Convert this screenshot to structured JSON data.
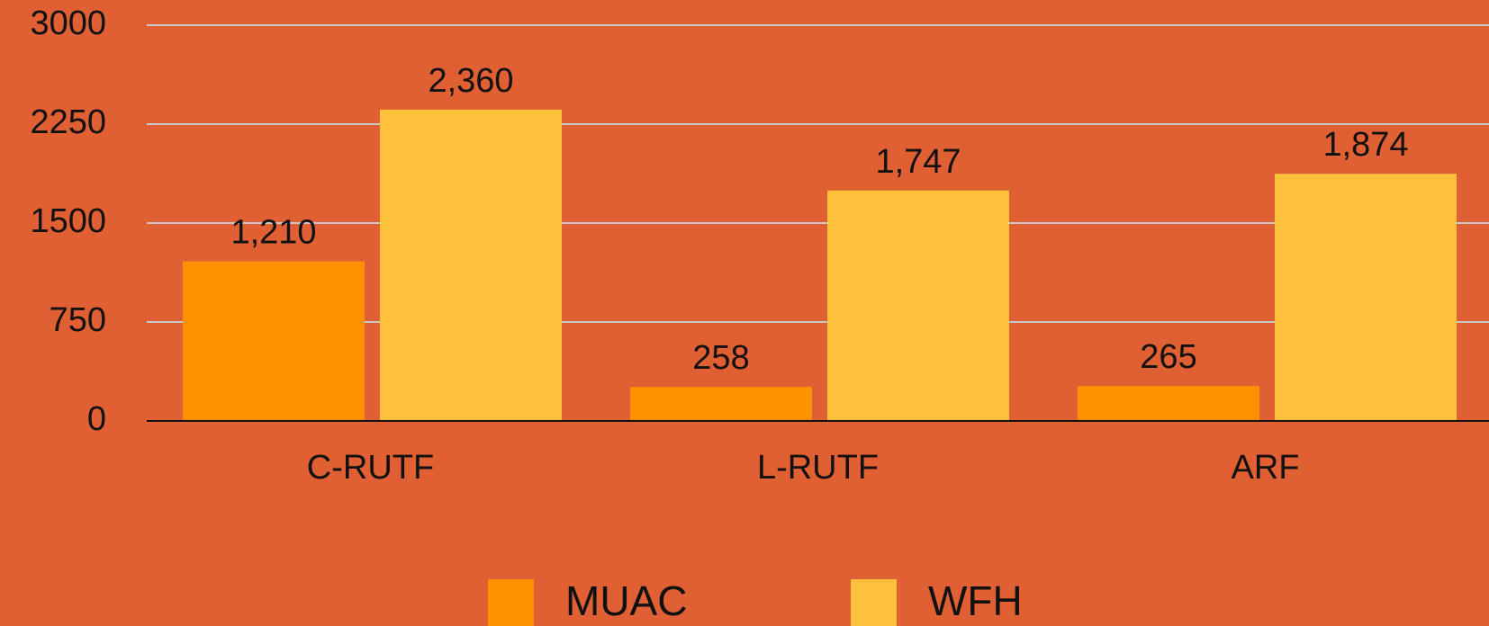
{
  "chart_data": {
    "type": "bar",
    "categories": [
      "C-RUTF",
      "L-RUTF",
      "ARF"
    ],
    "series": [
      {
        "name": "MUAC",
        "color": "#fd9200",
        "values": [
          1210,
          258,
          265
        ],
        "value_labels": [
          "1,210",
          "258",
          "265"
        ]
      },
      {
        "name": "WFH",
        "color": "#ffc03c",
        "values": [
          2360,
          1747,
          1874
        ],
        "value_labels": [
          "2,360",
          "1,747",
          "1,874"
        ]
      }
    ],
    "ylim": [
      0,
      3000
    ],
    "yticks": [
      0,
      750,
      1500,
      2250,
      3000
    ],
    "grid": true,
    "legend": "bottom",
    "background": "#e05f33"
  }
}
